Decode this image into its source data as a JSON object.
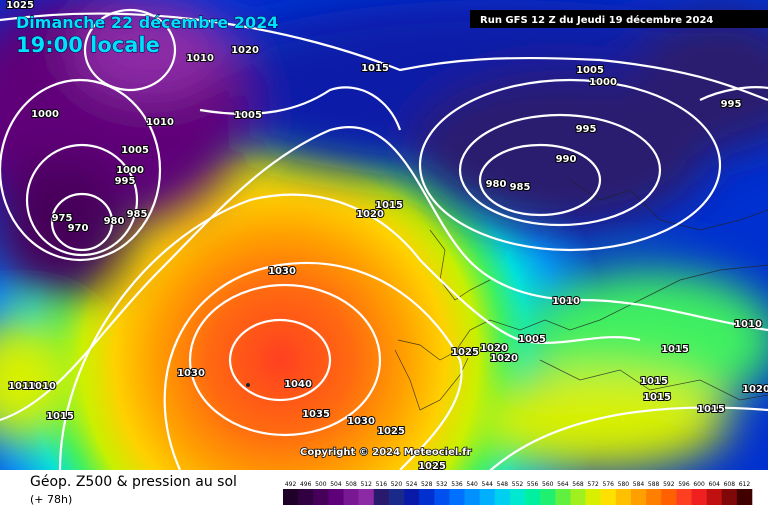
{
  "header": {
    "date": "Dimanche 22 décembre 2024",
    "local_time": "19:00 locale",
    "run": "Run GFS 12 Z du Jeudi 19 décembre 2024"
  },
  "copyright": "Copyright © 2024 Meteociel.fr",
  "footer": {
    "title": "Géop. Z500 & pression au sol",
    "lead": "(+ 78h)"
  },
  "isobar_labels": [
    1025,
    1020,
    1010,
    1015,
    1005,
    1000,
    995,
    1000,
    1005,
    1010,
    995,
    1005,
    990,
    1000,
    995,
    980,
    985,
    985,
    1015,
    1020,
    975,
    980,
    970,
    1030,
    1010,
    1010,
    1005,
    1020,
    1015,
    1025,
    1020,
    1030,
    1040,
    1015,
    1010,
    1010,
    1015,
    1035,
    1030,
    1025,
    1015,
    1020,
    1015,
    1025
  ],
  "colorbar": {
    "labels": [
      492,
      496,
      500,
      504,
      508,
      512,
      516,
      520,
      524,
      528,
      532,
      536,
      540,
      544,
      548,
      552,
      556,
      560,
      564,
      568,
      572,
      576,
      580,
      584,
      588,
      592,
      596,
      600,
      604,
      608,
      612
    ],
    "colors": [
      "#1e0028",
      "#300040",
      "#46005a",
      "#5e0078",
      "#781892",
      "#8c2aa6",
      "#2a1a6e",
      "#1a2a8a",
      "#0a1aa8",
      "#0030d0",
      "#0050f0",
      "#0070ff",
      "#0090ff",
      "#00b0ff",
      "#00d0f0",
      "#00e8d0",
      "#00f0a0",
      "#20f070",
      "#60f040",
      "#a0f020",
      "#d8f000",
      "#ffe000",
      "#ffc000",
      "#ffa000",
      "#ff8000",
      "#ff6000",
      "#ff4020",
      "#f02020",
      "#c01010",
      "#800808",
      "#400000"
    ]
  }
}
